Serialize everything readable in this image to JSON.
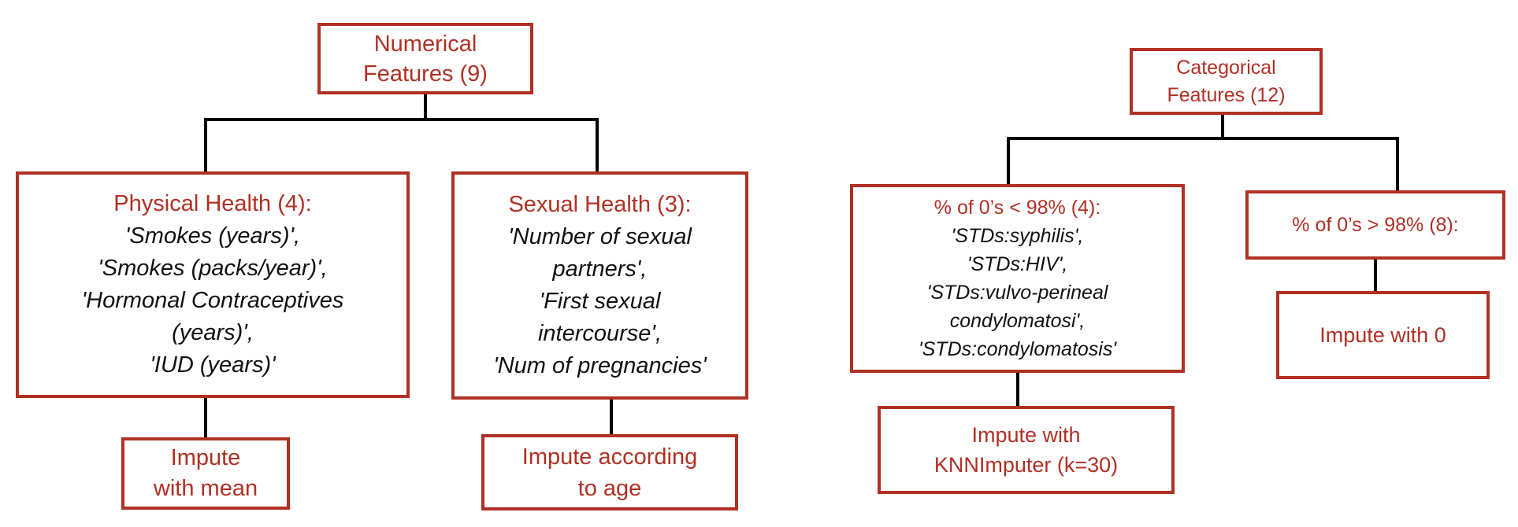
{
  "colors": {
    "box_border": "#b03024",
    "heading_text": "#b03024",
    "body_text": "#111111",
    "connector": "#000000"
  },
  "nodes": {
    "numerical": {
      "title": [
        "Numerical",
        "Features (9)"
      ]
    },
    "physical": {
      "title": "Physical Health (4):",
      "items": [
        "'Smokes (years)',",
        "'Smokes (packs/year)',",
        "'Hormonal Contraceptives",
        "(years)',",
        "'IUD (years)'"
      ]
    },
    "sexual": {
      "title": "Sexual Health (3):",
      "items": [
        "'Number of sexual",
        "partners',",
        "'First sexual",
        "intercourse',",
        "'Num of pregnancies'"
      ]
    },
    "impute_mean": {
      "title": [
        "Impute",
        "with mean"
      ]
    },
    "impute_age": {
      "title": [
        "Impute according",
        "to age"
      ]
    },
    "categorical": {
      "title": [
        "Categorical",
        "Features (12)"
      ]
    },
    "zeros_lt": {
      "title": "% of 0’s < 98% (4):",
      "items": [
        "'STDs:syphilis',",
        "'STDs:HIV',",
        "'STDs:vulvo-perineal",
        "condylomatosi',",
        "'STDs:condylomatosis'"
      ]
    },
    "zeros_gt": {
      "title": "% of 0’s > 98% (8):"
    },
    "impute_knn": {
      "title": [
        "Impute with",
        "KNNImputer (k=30)"
      ]
    },
    "impute_zero": {
      "title": "Impute with 0"
    }
  }
}
